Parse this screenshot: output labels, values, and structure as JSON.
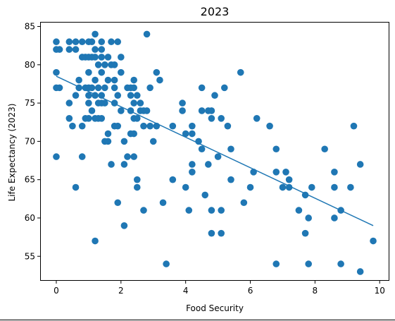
{
  "chart_data": {
    "type": "scatter",
    "title": "2023",
    "xlabel": "Food Security",
    "ylabel": "Life Expectancy (2023)",
    "xlim": [
      -0.5,
      10.3
    ],
    "ylim": [
      51.8,
      85.6
    ],
    "xticks": [
      0,
      2,
      4,
      6,
      8,
      10
    ],
    "yticks": [
      55,
      60,
      65,
      70,
      75,
      80,
      85
    ],
    "grid": false,
    "point_color": "#1f77b4",
    "line_color": "#1f77b4",
    "trend_line": {
      "x": [
        0,
        9.8
      ],
      "y": [
        78.5,
        59.0
      ]
    },
    "points": [
      {
        "x": 0.0,
        "y": 83
      },
      {
        "x": 0.0,
        "y": 82
      },
      {
        "x": 0.1,
        "y": 82
      },
      {
        "x": 0.0,
        "y": 79
      },
      {
        "x": 0.0,
        "y": 77
      },
      {
        "x": 0.1,
        "y": 77
      },
      {
        "x": 0.0,
        "y": 68
      },
      {
        "x": 0.4,
        "y": 83
      },
      {
        "x": 0.4,
        "y": 82
      },
      {
        "x": 0.4,
        "y": 75
      },
      {
        "x": 0.4,
        "y": 73
      },
      {
        "x": 0.5,
        "y": 72
      },
      {
        "x": 0.6,
        "y": 83
      },
      {
        "x": 0.6,
        "y": 82
      },
      {
        "x": 0.6,
        "y": 76
      },
      {
        "x": 0.6,
        "y": 64
      },
      {
        "x": 0.7,
        "y": 77
      },
      {
        "x": 0.7,
        "y": 78
      },
      {
        "x": 0.8,
        "y": 83
      },
      {
        "x": 0.8,
        "y": 81
      },
      {
        "x": 0.8,
        "y": 72
      },
      {
        "x": 0.8,
        "y": 68
      },
      {
        "x": 0.9,
        "y": 81
      },
      {
        "x": 0.9,
        "y": 77
      },
      {
        "x": 0.9,
        "y": 73
      },
      {
        "x": 1.0,
        "y": 83
      },
      {
        "x": 1.0,
        "y": 81
      },
      {
        "x": 1.0,
        "y": 79
      },
      {
        "x": 1.0,
        "y": 77
      },
      {
        "x": 1.0,
        "y": 76
      },
      {
        "x": 1.0,
        "y": 75
      },
      {
        "x": 1.0,
        "y": 73
      },
      {
        "x": 1.1,
        "y": 83
      },
      {
        "x": 1.1,
        "y": 81
      },
      {
        "x": 1.1,
        "y": 77
      },
      {
        "x": 1.1,
        "y": 74
      },
      {
        "x": 1.2,
        "y": 84
      },
      {
        "x": 1.2,
        "y": 82
      },
      {
        "x": 1.2,
        "y": 81
      },
      {
        "x": 1.2,
        "y": 78
      },
      {
        "x": 1.2,
        "y": 76
      },
      {
        "x": 1.2,
        "y": 73
      },
      {
        "x": 1.2,
        "y": 57
      },
      {
        "x": 1.3,
        "y": 80
      },
      {
        "x": 1.3,
        "y": 77
      },
      {
        "x": 1.3,
        "y": 75
      },
      {
        "x": 1.3,
        "y": 73
      },
      {
        "x": 1.4,
        "y": 83
      },
      {
        "x": 1.4,
        "y": 82
      },
      {
        "x": 1.4,
        "y": 81
      },
      {
        "x": 1.4,
        "y": 79
      },
      {
        "x": 1.4,
        "y": 76
      },
      {
        "x": 1.4,
        "y": 75
      },
      {
        "x": 1.4,
        "y": 73
      },
      {
        "x": 1.5,
        "y": 80
      },
      {
        "x": 1.5,
        "y": 77
      },
      {
        "x": 1.5,
        "y": 75
      },
      {
        "x": 1.5,
        "y": 70
      },
      {
        "x": 1.6,
        "y": 81
      },
      {
        "x": 1.6,
        "y": 78
      },
      {
        "x": 1.6,
        "y": 71
      },
      {
        "x": 1.6,
        "y": 70
      },
      {
        "x": 1.7,
        "y": 83
      },
      {
        "x": 1.7,
        "y": 80
      },
      {
        "x": 1.7,
        "y": 67
      },
      {
        "x": 1.8,
        "y": 80
      },
      {
        "x": 1.8,
        "y": 78
      },
      {
        "x": 1.8,
        "y": 77
      },
      {
        "x": 1.8,
        "y": 75
      },
      {
        "x": 1.8,
        "y": 72
      },
      {
        "x": 1.9,
        "y": 83
      },
      {
        "x": 1.9,
        "y": 76
      },
      {
        "x": 1.9,
        "y": 72
      },
      {
        "x": 1.9,
        "y": 62
      },
      {
        "x": 2.0,
        "y": 81
      },
      {
        "x": 2.0,
        "y": 79
      },
      {
        "x": 2.0,
        "y": 74
      },
      {
        "x": 2.1,
        "y": 70
      },
      {
        "x": 2.1,
        "y": 67
      },
      {
        "x": 2.1,
        "y": 59
      },
      {
        "x": 2.2,
        "y": 77
      },
      {
        "x": 2.2,
        "y": 68
      },
      {
        "x": 2.3,
        "y": 77
      },
      {
        "x": 2.3,
        "y": 76
      },
      {
        "x": 2.3,
        "y": 74
      },
      {
        "x": 2.3,
        "y": 71
      },
      {
        "x": 2.4,
        "y": 78
      },
      {
        "x": 2.4,
        "y": 77
      },
      {
        "x": 2.4,
        "y": 75
      },
      {
        "x": 2.4,
        "y": 73
      },
      {
        "x": 2.4,
        "y": 71
      },
      {
        "x": 2.4,
        "y": 68
      },
      {
        "x": 2.5,
        "y": 76
      },
      {
        "x": 2.5,
        "y": 73
      },
      {
        "x": 2.5,
        "y": 65
      },
      {
        "x": 2.5,
        "y": 64
      },
      {
        "x": 2.6,
        "y": 75
      },
      {
        "x": 2.6,
        "y": 74
      },
      {
        "x": 2.7,
        "y": 74
      },
      {
        "x": 2.7,
        "y": 72
      },
      {
        "x": 2.7,
        "y": 61
      },
      {
        "x": 2.8,
        "y": 84
      },
      {
        "x": 2.8,
        "y": 74
      },
      {
        "x": 2.9,
        "y": 77
      },
      {
        "x": 2.9,
        "y": 72
      },
      {
        "x": 3.0,
        "y": 70
      },
      {
        "x": 3.1,
        "y": 79
      },
      {
        "x": 3.1,
        "y": 72
      },
      {
        "x": 3.2,
        "y": 78
      },
      {
        "x": 3.3,
        "y": 62
      },
      {
        "x": 3.4,
        "y": 54
      },
      {
        "x": 3.6,
        "y": 72
      },
      {
        "x": 3.6,
        "y": 65
      },
      {
        "x": 3.9,
        "y": 75
      },
      {
        "x": 3.9,
        "y": 74
      },
      {
        "x": 4.0,
        "y": 71
      },
      {
        "x": 4.0,
        "y": 64
      },
      {
        "x": 4.1,
        "y": 61
      },
      {
        "x": 4.2,
        "y": 72
      },
      {
        "x": 4.2,
        "y": 71
      },
      {
        "x": 4.2,
        "y": 67
      },
      {
        "x": 4.2,
        "y": 66
      },
      {
        "x": 4.4,
        "y": 70
      },
      {
        "x": 4.5,
        "y": 77
      },
      {
        "x": 4.5,
        "y": 74
      },
      {
        "x": 4.5,
        "y": 69
      },
      {
        "x": 4.6,
        "y": 63
      },
      {
        "x": 4.7,
        "y": 74
      },
      {
        "x": 4.7,
        "y": 67
      },
      {
        "x": 4.8,
        "y": 74
      },
      {
        "x": 4.8,
        "y": 73
      },
      {
        "x": 4.8,
        "y": 61
      },
      {
        "x": 4.8,
        "y": 58
      },
      {
        "x": 4.9,
        "y": 76
      },
      {
        "x": 5.0,
        "y": 68
      },
      {
        "x": 5.1,
        "y": 73
      },
      {
        "x": 5.1,
        "y": 61
      },
      {
        "x": 5.1,
        "y": 58
      },
      {
        "x": 5.2,
        "y": 77
      },
      {
        "x": 5.3,
        "y": 72
      },
      {
        "x": 5.4,
        "y": 69
      },
      {
        "x": 5.4,
        "y": 65
      },
      {
        "x": 5.7,
        "y": 79
      },
      {
        "x": 5.8,
        "y": 62
      },
      {
        "x": 6.0,
        "y": 64
      },
      {
        "x": 6.1,
        "y": 66
      },
      {
        "x": 6.2,
        "y": 73
      },
      {
        "x": 6.6,
        "y": 72
      },
      {
        "x": 6.8,
        "y": 69
      },
      {
        "x": 6.8,
        "y": 66
      },
      {
        "x": 6.8,
        "y": 54
      },
      {
        "x": 7.0,
        "y": 64
      },
      {
        "x": 7.1,
        "y": 66
      },
      {
        "x": 7.2,
        "y": 65
      },
      {
        "x": 7.2,
        "y": 64
      },
      {
        "x": 7.5,
        "y": 61
      },
      {
        "x": 7.7,
        "y": 63
      },
      {
        "x": 7.7,
        "y": 58
      },
      {
        "x": 7.8,
        "y": 60
      },
      {
        "x": 7.8,
        "y": 54
      },
      {
        "x": 7.9,
        "y": 64
      },
      {
        "x": 8.3,
        "y": 69
      },
      {
        "x": 8.6,
        "y": 66
      },
      {
        "x": 8.6,
        "y": 64
      },
      {
        "x": 8.6,
        "y": 60
      },
      {
        "x": 8.8,
        "y": 61
      },
      {
        "x": 8.8,
        "y": 54
      },
      {
        "x": 9.1,
        "y": 64
      },
      {
        "x": 9.2,
        "y": 72
      },
      {
        "x": 9.4,
        "y": 67
      },
      {
        "x": 9.4,
        "y": 53
      },
      {
        "x": 9.8,
        "y": 57
      }
    ]
  }
}
